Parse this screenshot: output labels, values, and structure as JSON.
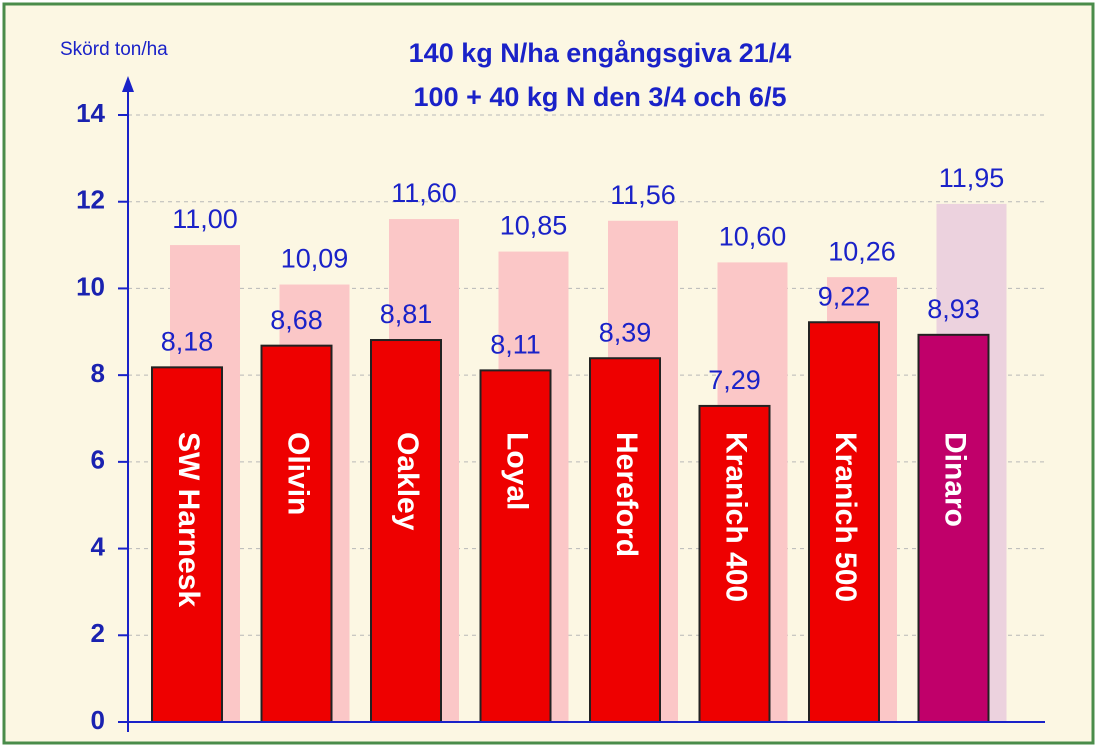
{
  "chart_data": {
    "type": "bar",
    "title": "140 kg N/ha engångsgiva 21/4",
    "subtitle": "100 + 40 kg N den 3/4 och 6/5",
    "y_label": "Skörd ton/ha",
    "categories": [
      "SW Harnesk",
      "Olivin",
      "Oakley",
      "Loyal",
      "Hereford",
      "Kranich 400",
      "Kranich 500",
      "Dinaro"
    ],
    "series": [
      {
        "colors": [
          "#fbc7c7",
          "#fbc7c7",
          "#fbc7c7",
          "#fbc7c7",
          "#fbc7c7",
          "#fbc7c7",
          "#fbc7c7",
          "#ecd2de"
        ],
        "values": [
          11.0,
          10.09,
          11.6,
          10.85,
          11.56,
          10.6,
          10.26,
          11.95
        ],
        "value_labels": [
          "11,00",
          "10,09",
          "11,60",
          "10,85",
          "11,56",
          "10,60",
          "10,26",
          "11,95"
        ]
      },
      {
        "colors": [
          "#ee0000",
          "#ee0000",
          "#ee0000",
          "#ee0000",
          "#ee0000",
          "#ee0000",
          "#ee0000",
          "#c0006a"
        ],
        "values": [
          8.18,
          8.68,
          8.81,
          8.11,
          8.39,
          7.29,
          9.22,
          8.93
        ],
        "value_labels": [
          "8,18",
          "8,68",
          "8,81",
          "8,11",
          "8,39",
          "7,29",
          "9,22",
          "8,93"
        ]
      }
    ],
    "ylim": [
      0,
      14
    ],
    "yticks": [
      0,
      2,
      4,
      6,
      8,
      10,
      12,
      14
    ],
    "grid": true
  }
}
